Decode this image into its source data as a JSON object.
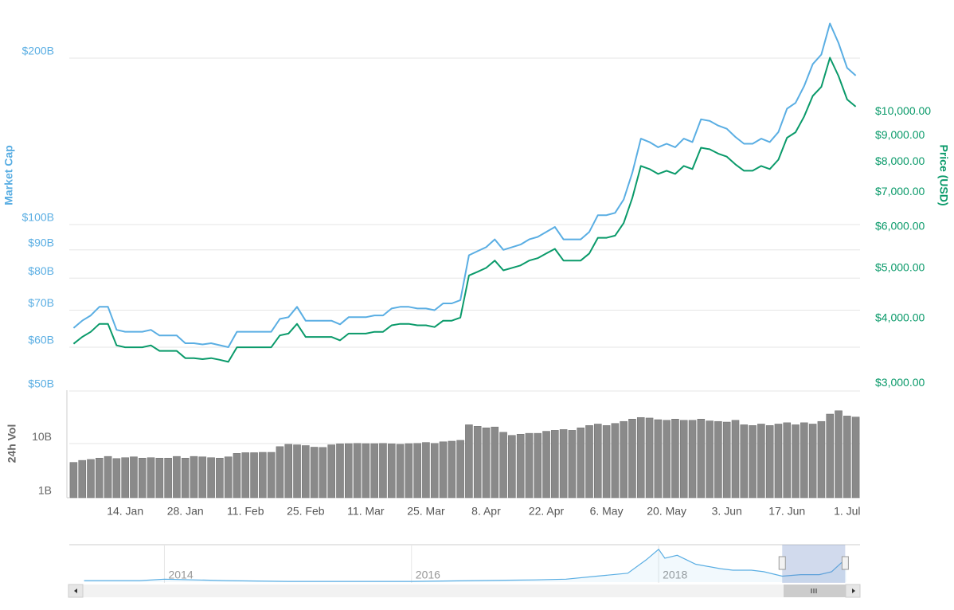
{
  "chart_data": [
    {
      "type": "line",
      "y_label": "Market Cap",
      "y2_label": "Price (USD)",
      "categories": [
        null,
        null,
        null,
        null,
        null,
        null,
        "14. Jan",
        null,
        null,
        null,
        null,
        null,
        null,
        "28. Jan",
        null,
        null,
        null,
        null,
        null,
        null,
        "11. Feb",
        null,
        null,
        null,
        null,
        null,
        null,
        "25. Feb",
        null,
        null,
        null,
        null,
        null,
        null,
        "11. Mar",
        null,
        null,
        null,
        null,
        null,
        null,
        "25. Mar",
        null,
        null,
        null,
        null,
        null,
        null,
        "8. Apr",
        null,
        null,
        null,
        null,
        null,
        null,
        "22. Apr",
        null,
        null,
        null,
        null,
        null,
        null,
        "6. May",
        null,
        null,
        null,
        null,
        null,
        null,
        "20. May",
        null,
        null,
        null,
        null,
        null,
        null,
        "3. Jun",
        null,
        null,
        null,
        null,
        null,
        null,
        "17. Jun",
        null,
        null,
        null,
        null,
        null,
        null,
        "1. Jul",
        null
      ],
      "ylog": true,
      "ylim": [
        50,
        240
      ],
      "yticks": [
        {
          "value": 50,
          "label": "$50B"
        },
        {
          "value": 60,
          "label": "$60B"
        },
        {
          "value": 70,
          "label": "$70B"
        },
        {
          "value": 80,
          "label": "$80B"
        },
        {
          "value": 90,
          "label": "$90B"
        },
        {
          "value": 100,
          "label": "$100B"
        },
        {
          "value": 200,
          "label": "$200B"
        }
      ],
      "y2lim": [
        2900,
        15400
      ],
      "y2ticks": [
        {
          "value": 3000,
          "label": "$3,000.00"
        },
        {
          "value": 4000,
          "label": "$4,000.00"
        },
        {
          "value": 5000,
          "label": "$5,000.00"
        },
        {
          "value": 6000,
          "label": "$6,000.00"
        },
        {
          "value": 7000,
          "label": "$7,000.00"
        },
        {
          "value": 8000,
          "label": "$8,000.00"
        },
        {
          "value": 9000,
          "label": "$9,000.00"
        },
        {
          "value": 10000,
          "label": "$10,000.00"
        }
      ],
      "grid": true,
      "series": [
        {
          "color": "#5aaee3",
          "values": [
            65,
            67,
            68.5,
            71,
            71,
            64.5,
            64,
            64,
            64,
            64.5,
            63,
            63,
            63,
            61,
            61,
            60.7,
            61,
            60.5,
            60,
            64,
            64,
            64,
            64,
            64,
            67.5,
            68,
            71,
            67,
            67,
            67,
            67,
            66,
            68,
            68,
            68,
            68.5,
            68.5,
            70.5,
            71,
            71,
            70.5,
            70.5,
            70,
            72,
            72,
            73,
            88,
            89.5,
            91,
            94,
            90,
            91,
            92,
            94,
            95,
            97,
            99,
            94,
            94,
            94,
            97,
            104,
            104,
            105,
            111,
            124,
            143,
            141,
            138,
            140,
            138,
            143,
            141,
            155,
            154,
            151,
            149,
            144,
            140,
            140,
            143,
            141,
            147,
            162,
            166,
            178,
            195,
            203,
            231,
            213,
            192,
            186
          ]
        },
        {
          "color": "#0a9a6a",
          "axis": "y2",
          "values": [
            3575,
            3685,
            3770,
            3905,
            3905,
            3550,
            3520,
            3520,
            3520,
            3550,
            3465,
            3465,
            3465,
            3355,
            3355,
            3340,
            3355,
            3330,
            3300,
            3520,
            3520,
            3520,
            3520,
            3520,
            3710,
            3740,
            3905,
            3685,
            3685,
            3685,
            3685,
            3630,
            3740,
            3740,
            3740,
            3770,
            3770,
            3880,
            3905,
            3905,
            3880,
            3880,
            3850,
            3960,
            3960,
            4015,
            4840,
            4920,
            5005,
            5170,
            4950,
            5005,
            5060,
            5170,
            5225,
            5335,
            5445,
            5170,
            5170,
            5170,
            5335,
            5720,
            5720,
            5775,
            6105,
            6820,
            7865,
            7755,
            7590,
            7700,
            7590,
            7865,
            7755,
            8525,
            8470,
            8305,
            8195,
            7920,
            7700,
            7700,
            7865,
            7755,
            8085,
            8910,
            9130,
            9790,
            10725,
            11165,
            12705,
            11715,
            10560,
            10230
          ]
        }
      ]
    },
    {
      "type": "bar",
      "y_label": "24h Vol",
      "ylog": true,
      "ylim": [
        1,
        97
      ],
      "yticks": [
        {
          "value": 1,
          "label": "1B"
        },
        {
          "value": 10,
          "label": "10B"
        }
      ],
      "color": "#8a8a8a",
      "values": [
        4.5,
        4.9,
        5.1,
        5.4,
        5.8,
        5.3,
        5.5,
        5.7,
        5.4,
        5.5,
        5.4,
        5.4,
        5.8,
        5.4,
        5.8,
        5.7,
        5.5,
        5.4,
        5.7,
        6.6,
        6.8,
        6.8,
        6.9,
        6.9,
        8.8,
        9.7,
        9.5,
        9.2,
        8.6,
        8.5,
        9.5,
        9.9,
        10,
        10.1,
        10,
        10,
        10.1,
        9.9,
        9.7,
        10,
        10.1,
        10.5,
        10.1,
        10.8,
        11.1,
        11.5,
        22.3,
        20.9,
        19.6,
        20.3,
        16.2,
        14.2,
        14.9,
        15.5,
        15.5,
        16.9,
        17.6,
        18.2,
        17.6,
        19.6,
        21.6,
        23,
        21.6,
        23.6,
        25.7,
        28.4,
        30.4,
        29.7,
        27.7,
        27,
        28.4,
        27,
        27,
        28.4,
        26.3,
        25.7,
        25,
        27,
        22.3,
        21.6,
        23,
        21.6,
        23,
        24.3,
        22.3,
        24.3,
        23,
        25.7,
        35.1,
        40.5,
        32.4,
        31
      ]
    },
    {
      "type": "area",
      "color": "#5aaee3",
      "x": [
        2013.35,
        2013.8,
        2014.0,
        2014.5,
        2015.0,
        2015.5,
        2016.0,
        2016.5,
        2017.0,
        2017.25,
        2017.5,
        2017.75,
        2017.9,
        2018.0,
        2018.05,
        2018.15,
        2018.3,
        2018.5,
        2018.6,
        2018.75,
        2018.85,
        2019.0,
        2019.15,
        2019.3,
        2019.4,
        2019.48,
        2019.52
      ],
      "values": [
        2,
        2,
        4,
        2,
        1,
        1,
        1,
        2,
        3,
        4,
        8,
        12,
        30,
        44,
        32,
        36,
        24,
        18,
        16,
        16,
        14,
        8,
        10,
        10,
        14,
        26,
        22
      ],
      "xlim": [
        2013.23,
        2019.63
      ],
      "ylim": [
        0,
        48
      ],
      "xticks": [
        2014,
        2016,
        2018
      ],
      "selection": [
        2019.0,
        2019.51
      ]
    }
  ]
}
